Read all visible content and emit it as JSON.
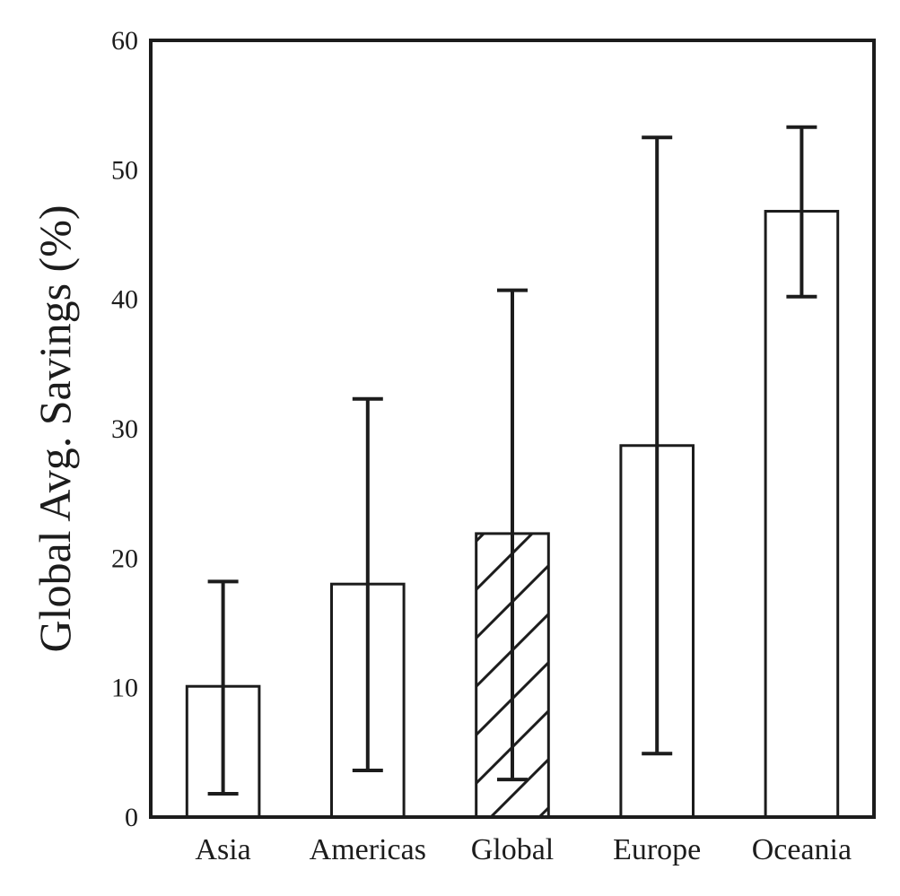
{
  "chart_data": {
    "type": "bar",
    "title": "",
    "xlabel": "",
    "ylabel": "Global Avg. Savings (%)",
    "ylim": [
      0,
      60
    ],
    "yticks": [
      0,
      10,
      20,
      30,
      40,
      50,
      60
    ],
    "grid": false,
    "legend": "none",
    "categories": [
      "Asia",
      "Americas",
      "Global",
      "Europe",
      "Oceania"
    ],
    "values": [
      10.1,
      18.0,
      21.9,
      28.7,
      46.8
    ],
    "error_low": [
      1.8,
      3.6,
      2.9,
      4.9,
      40.2
    ],
    "error_high": [
      18.2,
      32.3,
      40.7,
      52.5,
      53.3
    ],
    "hatched": [
      false,
      false,
      true,
      false,
      false
    ],
    "colors": {
      "bar_fill": "#ffffff",
      "edge": "#1c1c1c"
    }
  }
}
